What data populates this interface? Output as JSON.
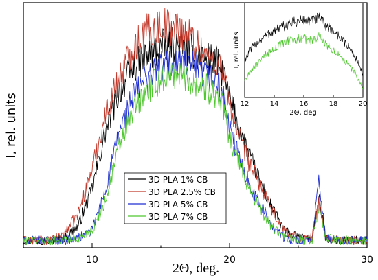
{
  "chart_data": [
    {
      "type": "line",
      "xlabel": "2Θ, deg.",
      "ylabel": "I, rel. units",
      "xlim": [
        5,
        30
      ],
      "ylim": [
        0,
        100
      ],
      "x_ticks": [
        10,
        20,
        30
      ],
      "y_ticks_shown": false,
      "grid": false,
      "legend_placement": "lower-center",
      "series": [
        {
          "name": "3D PLA 1% CB",
          "color": "#000000",
          "points": [
            [
              5,
              3
            ],
            [
              7,
              3
            ],
            [
              8,
              4
            ],
            [
              9,
              9
            ],
            [
              10,
              24
            ],
            [
              11,
              48
            ],
            [
              12,
              64
            ],
            [
              13,
              74
            ],
            [
              14,
              78
            ],
            [
              15,
              82
            ],
            [
              16,
              83
            ],
            [
              17,
              81
            ],
            [
              18,
              78
            ],
            [
              19,
              76
            ],
            [
              19.5,
              72
            ],
            [
              20,
              61
            ],
            [
              21,
              44
            ],
            [
              22,
              30
            ],
            [
              23,
              17
            ],
            [
              24,
              7
            ],
            [
              25,
              4
            ],
            [
              26,
              4
            ],
            [
              26.5,
              20
            ],
            [
              27,
              4
            ],
            [
              28,
              3
            ],
            [
              30,
              3
            ]
          ]
        },
        {
          "name": "3D PLA 2.5% CB",
          "color": "#c0392b",
          "points": [
            [
              5,
              3
            ],
            [
              7,
              3
            ],
            [
              8,
              6
            ],
            [
              9,
              14
            ],
            [
              10,
              32
            ],
            [
              11,
              55
            ],
            [
              12,
              70
            ],
            [
              13,
              82
            ],
            [
              14,
              88
            ],
            [
              15,
              91
            ],
            [
              16,
              90
            ],
            [
              17,
              87
            ],
            [
              18,
              80
            ],
            [
              19,
              76
            ],
            [
              19.5,
              73
            ],
            [
              20,
              58
            ],
            [
              21,
              40
            ],
            [
              22,
              28
            ],
            [
              23,
              16
            ],
            [
              24,
              7
            ],
            [
              25,
              4
            ],
            [
              26,
              4
            ],
            [
              26.5,
              19
            ],
            [
              27,
              4
            ],
            [
              28,
              3
            ],
            [
              30,
              3
            ]
          ]
        },
        {
          "name": "3D PLA 5% CB",
          "color": "#1f2fd1",
          "points": [
            [
              5,
              3
            ],
            [
              7,
              3
            ],
            [
              8,
              3
            ],
            [
              9,
              4
            ],
            [
              10,
              7
            ],
            [
              11,
              24
            ],
            [
              12,
              48
            ],
            [
              13,
              62
            ],
            [
              14,
              70
            ],
            [
              15,
              74
            ],
            [
              16,
              76
            ],
            [
              17,
              75
            ],
            [
              18,
              71
            ],
            [
              19,
              68
            ],
            [
              19.5,
              63
            ],
            [
              20,
              48
            ],
            [
              21,
              32
            ],
            [
              22,
              20
            ],
            [
              23,
              10
            ],
            [
              24,
              4
            ],
            [
              25,
              3
            ],
            [
              26,
              3
            ],
            [
              26.5,
              27
            ],
            [
              27,
              4
            ],
            [
              28,
              3
            ],
            [
              30,
              3
            ]
          ]
        },
        {
          "name": "3D PLA 7% CB",
          "color": "#4fc72f",
          "points": [
            [
              5,
              3
            ],
            [
              7,
              3
            ],
            [
              8,
              3
            ],
            [
              9,
              4
            ],
            [
              10,
              7
            ],
            [
              11,
              20
            ],
            [
              12,
              42
            ],
            [
              13,
              56
            ],
            [
              14,
              64
            ],
            [
              15,
              69
            ],
            [
              16,
              71
            ],
            [
              17,
              69
            ],
            [
              18,
              66
            ],
            [
              19,
              63
            ],
            [
              19.5,
              58
            ],
            [
              20,
              45
            ],
            [
              21,
              30
            ],
            [
              22,
              18
            ],
            [
              23,
              9
            ],
            [
              24,
              4
            ],
            [
              25,
              3
            ],
            [
              26,
              3
            ],
            [
              26.5,
              17
            ],
            [
              27,
              4
            ],
            [
              28,
              3
            ],
            [
              30,
              3
            ]
          ]
        }
      ]
    },
    {
      "type": "line",
      "xlabel": "2Θ, deg",
      "ylabel": "I, rel. units",
      "xlim": [
        12,
        20
      ],
      "ylim": [
        0,
        100
      ],
      "x_ticks": [
        12,
        14,
        16,
        18,
        20
      ],
      "y_ticks_shown": false,
      "grid": false,
      "series": [
        {
          "name": "",
          "color": "#000000",
          "points": [
            [
              12,
              40
            ],
            [
              12.5,
              52
            ],
            [
              13,
              60
            ],
            [
              13.5,
              66
            ],
            [
              14,
              70
            ],
            [
              14.5,
              74
            ],
            [
              15,
              78
            ],
            [
              15.5,
              80
            ],
            [
              16,
              82
            ],
            [
              16.5,
              80
            ],
            [
              17,
              84
            ],
            [
              17.5,
              76
            ],
            [
              18,
              70
            ],
            [
              18.5,
              63
            ],
            [
              19,
              54
            ],
            [
              19.5,
              43
            ],
            [
              20,
              24
            ]
          ]
        },
        {
          "name": "",
          "color": "#4fc72f",
          "points": [
            [
              12,
              18
            ],
            [
              12.5,
              30
            ],
            [
              13,
              38
            ],
            [
              13.5,
              46
            ],
            [
              14,
              52
            ],
            [
              14.5,
              56
            ],
            [
              15,
              60
            ],
            [
              15.5,
              62
            ],
            [
              16,
              62
            ],
            [
              16.5,
              60
            ],
            [
              17,
              64
            ],
            [
              17.5,
              56
            ],
            [
              18,
              50
            ],
            [
              18.5,
              43
            ],
            [
              19,
              35
            ],
            [
              19.5,
              25
            ],
            [
              20,
              10
            ]
          ]
        }
      ]
    }
  ]
}
